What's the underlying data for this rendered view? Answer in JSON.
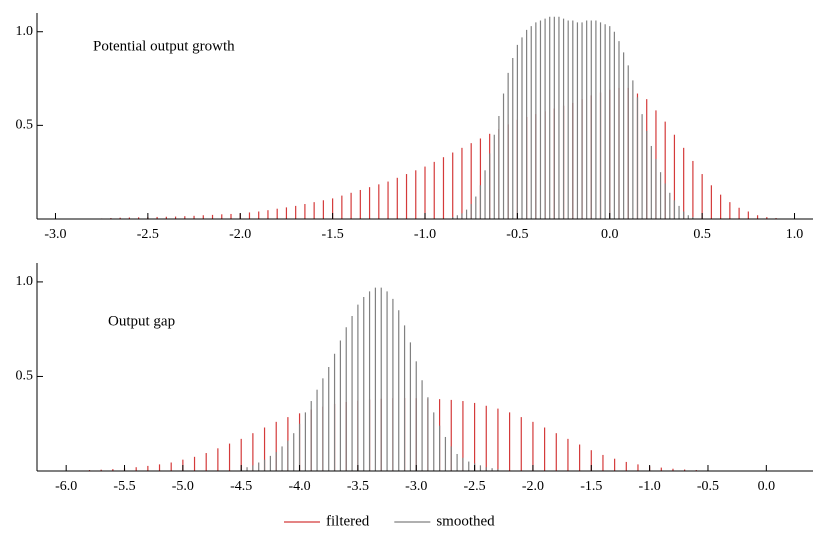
{
  "chart_data": [
    {
      "type": "spike",
      "annotation": "Potential output growth",
      "xlim": [
        -3.1,
        1.1
      ],
      "ylim": [
        0,
        1.1
      ],
      "xticks": [
        {
          "value": -3,
          "label": "-3.0"
        },
        -2.5,
        {
          "value": -2,
          "label": "-2.0"
        },
        -1.5,
        {
          "value": -1,
          "label": "-1.0"
        },
        -0.5,
        {
          "value": 0,
          "label": "0.0"
        },
        0.5,
        {
          "value": 1,
          "label": "1.0"
        }
      ],
      "yticks": [
        0.5,
        {
          "value": 1,
          "label": "1.0"
        }
      ],
      "series": [
        {
          "name": "filtered",
          "color": "#d43a3a",
          "x": [
            -2.8,
            -2.75,
            -2.7,
            -2.65,
            -2.6,
            -2.55,
            -2.5,
            -2.45,
            -2.4,
            -2.35,
            -2.3,
            -2.25,
            -2.2,
            -2.15,
            -2.1,
            -2.05,
            -2.0,
            -1.95,
            -1.9,
            -1.85,
            -1.8,
            -1.75,
            -1.7,
            -1.65,
            -1.6,
            -1.55,
            -1.5,
            -1.45,
            -1.4,
            -1.35,
            -1.3,
            -1.25,
            -1.2,
            -1.15,
            -1.1,
            -1.05,
            -1.0,
            -0.95,
            -0.9,
            -0.85,
            -0.8,
            -0.75,
            -0.7,
            -0.65,
            -0.6,
            -0.55,
            -0.5,
            -0.45,
            -0.4,
            -0.35,
            -0.3,
            -0.25,
            -0.2,
            -0.15,
            -0.1,
            -0.05,
            0.0,
            0.05,
            0.1,
            0.15,
            0.2,
            0.25,
            0.3,
            0.35,
            0.4,
            0.45,
            0.5,
            0.55,
            0.6,
            0.65,
            0.7,
            0.75,
            0.8,
            0.85,
            0.9
          ],
          "values": [
            0,
            0.003,
            0.005,
            0.007,
            0.008,
            0.009,
            0.01,
            0.011,
            0.012,
            0.013,
            0.015,
            0.017,
            0.02,
            0.022,
            0.025,
            0.027,
            0.03,
            0.035,
            0.04,
            0.047,
            0.055,
            0.062,
            0.07,
            0.08,
            0.09,
            0.1,
            0.11,
            0.125,
            0.14,
            0.155,
            0.17,
            0.185,
            0.2,
            0.22,
            0.24,
            0.26,
            0.28,
            0.305,
            0.33,
            0.355,
            0.38,
            0.405,
            0.43,
            0.455,
            0.48,
            0.505,
            0.53,
            0.545,
            0.56,
            0.575,
            0.59,
            0.605,
            0.62,
            0.64,
            0.66,
            0.675,
            0.69,
            0.7,
            0.7,
            0.67,
            0.64,
            0.58,
            0.52,
            0.45,
            0.38,
            0.31,
            0.24,
            0.18,
            0.13,
            0.09,
            0.06,
            0.04,
            0.02,
            0.01,
            0.005
          ]
        },
        {
          "name": "smoothed",
          "color": "#808080",
          "x": [
            -0.85,
            -0.825,
            -0.8,
            -0.775,
            -0.75,
            -0.725,
            -0.7,
            -0.675,
            -0.65,
            -0.625,
            -0.6,
            -0.575,
            -0.55,
            -0.525,
            -0.5,
            -0.475,
            -0.45,
            -0.425,
            -0.4,
            -0.375,
            -0.35,
            -0.325,
            -0.3,
            -0.275,
            -0.25,
            -0.225,
            -0.2,
            -0.175,
            -0.15,
            -0.125,
            -0.1,
            -0.075,
            -0.05,
            -0.025,
            0.0,
            0.025,
            0.05,
            0.075,
            0.1,
            0.125,
            0.15,
            0.175,
            0.2,
            0.225,
            0.25,
            0.275,
            0.3,
            0.325,
            0.35,
            0.375,
            0.4,
            0.425,
            0.45
          ],
          "values": [
            0.01,
            0.02,
            0.03,
            0.05,
            0.08,
            0.12,
            0.18,
            0.26,
            0.35,
            0.45,
            0.55,
            0.67,
            0.78,
            0.86,
            0.93,
            0.97,
            1.01,
            1.03,
            1.05,
            1.06,
            1.07,
            1.08,
            1.08,
            1.08,
            1.07,
            1.06,
            1.06,
            1.05,
            1.05,
            1.06,
            1.06,
            1.06,
            1.05,
            1.04,
            1.03,
            1.0,
            0.95,
            0.89,
            0.82,
            0.74,
            0.65,
            0.56,
            0.47,
            0.39,
            0.32,
            0.25,
            0.19,
            0.14,
            0.1,
            0.07,
            0.04,
            0.02,
            0.01
          ]
        }
      ]
    },
    {
      "type": "spike",
      "annotation": "Output gap",
      "xlim": [
        -6.25,
        0.4
      ],
      "ylim": [
        0,
        1.1
      ],
      "xticks": [
        {
          "value": -6,
          "label": "-6.0"
        },
        -5.5,
        {
          "value": -5,
          "label": "-5.0"
        },
        -4.5,
        {
          "value": -4,
          "label": "-4.0"
        },
        -3.5,
        {
          "value": -3,
          "label": "-3.0"
        },
        -2.5,
        {
          "value": -2,
          "label": "-2.0"
        },
        -1.5,
        {
          "value": -1,
          "label": "-1.0"
        },
        -0.5,
        {
          "value": 0,
          "label": "0.0"
        }
      ],
      "yticks": [
        0.5,
        {
          "value": 1,
          "label": "1.0"
        }
      ],
      "series": [
        {
          "color": "#d43a3a",
          "x": [
            -5.8,
            -5.7,
            -5.6,
            -5.5,
            -5.4,
            -5.3,
            -5.2,
            -5.1,
            -5.0,
            -4.9,
            -4.8,
            -4.7,
            -4.6,
            -4.5,
            -4.4,
            -4.3,
            -4.2,
            -4.1,
            -4.0,
            -3.9,
            -3.8,
            -3.7,
            -3.6,
            -3.5,
            -3.4,
            -3.3,
            -3.2,
            -3.1,
            -3.0,
            -2.9,
            -2.8,
            -2.7,
            -2.6,
            -2.5,
            -2.4,
            -2.3,
            -2.2,
            -2.1,
            -2.0,
            -1.9,
            -1.8,
            -1.7,
            -1.6,
            -1.5,
            -1.4,
            -1.3,
            -1.2,
            -1.1,
            -1.0,
            -0.9,
            -0.8,
            -0.7,
            -0.6,
            -0.5
          ],
          "values": [
            0.005,
            0.007,
            0.01,
            0.014,
            0.02,
            0.027,
            0.035,
            0.045,
            0.06,
            0.075,
            0.095,
            0.12,
            0.145,
            0.17,
            0.2,
            0.23,
            0.26,
            0.285,
            0.305,
            0.325,
            0.34,
            0.355,
            0.365,
            0.372,
            0.378,
            0.382,
            0.385,
            0.386,
            0.385,
            0.383,
            0.38,
            0.376,
            0.37,
            0.36,
            0.345,
            0.33,
            0.31,
            0.285,
            0.26,
            0.23,
            0.2,
            0.17,
            0.14,
            0.11,
            0.085,
            0.065,
            0.048,
            0.035,
            0.025,
            0.018,
            0.012,
            0.008,
            0.005,
            0.003
          ]
        },
        {
          "color": "#808080",
          "x": [
            -4.5,
            -4.45,
            -4.4,
            -4.35,
            -4.3,
            -4.25,
            -4.2,
            -4.15,
            -4.1,
            -4.05,
            -4.0,
            -3.95,
            -3.9,
            -3.85,
            -3.8,
            -3.75,
            -3.7,
            -3.65,
            -3.6,
            -3.55,
            -3.5,
            -3.45,
            -3.4,
            -3.35,
            -3.3,
            -3.25,
            -3.2,
            -3.15,
            -3.1,
            -3.05,
            -3.0,
            -2.95,
            -2.9,
            -2.85,
            -2.8,
            -2.75,
            -2.7,
            -2.65,
            -2.6,
            -2.55,
            -2.5,
            -2.45,
            -2.4,
            -2.35,
            -2.3
          ],
          "values": [
            0.01,
            0.02,
            0.03,
            0.045,
            0.06,
            0.08,
            0.1,
            0.13,
            0.16,
            0.2,
            0.25,
            0.31,
            0.37,
            0.43,
            0.49,
            0.55,
            0.62,
            0.69,
            0.76,
            0.82,
            0.88,
            0.92,
            0.95,
            0.97,
            0.97,
            0.95,
            0.91,
            0.85,
            0.77,
            0.68,
            0.58,
            0.48,
            0.39,
            0.31,
            0.24,
            0.18,
            0.13,
            0.09,
            0.07,
            0.05,
            0.04,
            0.03,
            0.02,
            0.015,
            0.01
          ]
        }
      ]
    }
  ]
}
